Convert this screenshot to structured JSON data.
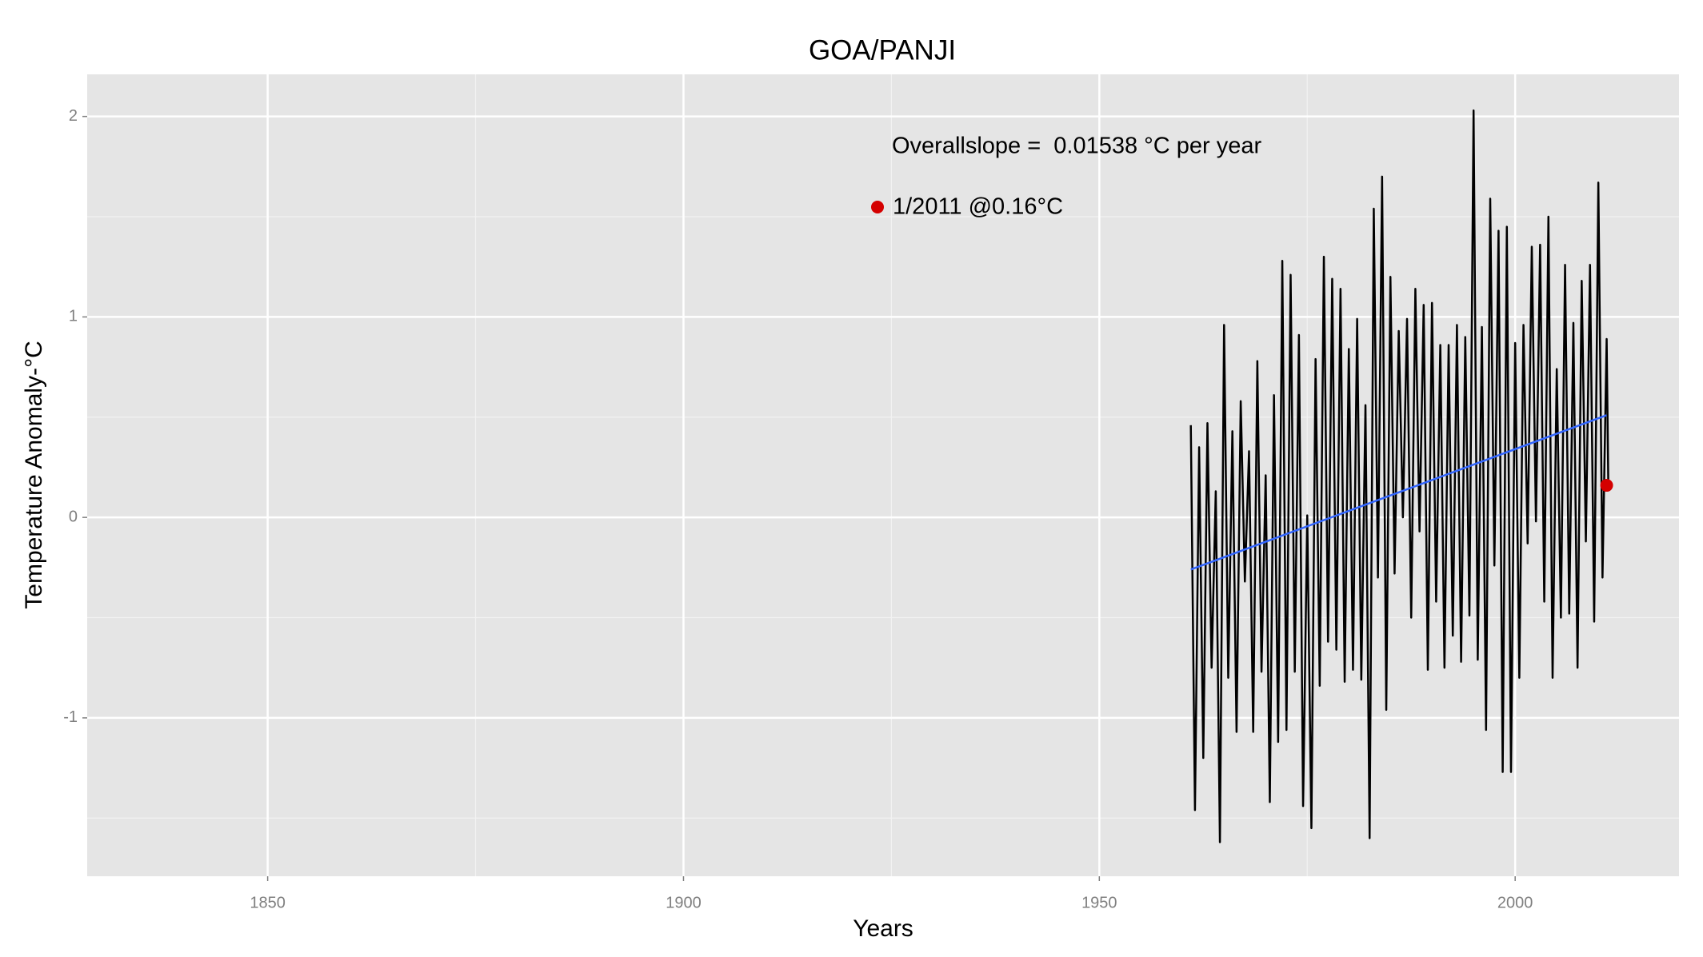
{
  "chart_data": {
    "type": "line",
    "title": "GOA/PANJI",
    "x_label": "Years",
    "y_label": "Temperature Anomaly-°C",
    "xlim": [
      1828.3,
      2019.7
    ],
    "ylim": [
      -1.79,
      2.21
    ],
    "xticks": [
      1850,
      1900,
      1950,
      2000
    ],
    "yticks": [
      -1,
      0,
      1,
      2
    ],
    "grid": true,
    "series": [
      {
        "color": "#000000",
        "x": [
          1961.0,
          1961.5,
          1962.0,
          1962.5,
          1963.0,
          1963.5,
          1964.0,
          1964.5,
          1965.0,
          1965.5,
          1966.0,
          1966.5,
          1967.0,
          1967.5,
          1968.0,
          1968.5,
          1969.0,
          1969.5,
          1970.0,
          1970.5,
          1971.0,
          1971.5,
          1972.0,
          1972.5,
          1973.0,
          1973.5,
          1974.0,
          1974.5,
          1975.0,
          1975.5,
          1976.0,
          1976.5,
          1977.0,
          1977.5,
          1978.0,
          1978.5,
          1979.0,
          1979.5,
          1980.0,
          1980.5,
          1981.0,
          1981.5,
          1982.0,
          1982.5,
          1983.0,
          1983.5,
          1984.0,
          1984.5,
          1985.0,
          1985.5,
          1986.0,
          1986.5,
          1987.0,
          1987.5,
          1988.0,
          1988.5,
          1989.0,
          1989.5,
          1990.0,
          1990.5,
          1991.0,
          1991.5,
          1992.0,
          1992.5,
          1993.0,
          1993.5,
          1994.0,
          1994.5,
          1995.0,
          1995.5,
          1996.0,
          1996.5,
          1997.0,
          1997.5,
          1998.0,
          1998.5,
          1999.0,
          1999.5,
          2000.0,
          2000.5,
          2001.0,
          2001.5,
          2002.0,
          2002.5,
          2003.0,
          2003.5,
          2004.0,
          2004.5,
          2005.0,
          2005.5,
          2006.0,
          2006.5,
          2007.0,
          2007.5,
          2008.0,
          2008.5,
          2009.0,
          2009.5,
          2010.0,
          2010.5,
          2011.0,
          2011.2
        ],
        "values": [
          0.46,
          -1.46,
          0.35,
          -1.2,
          0.47,
          -0.75,
          0.13,
          -1.62,
          0.96,
          -0.8,
          0.43,
          -1.07,
          0.58,
          -0.32,
          0.33,
          -1.07,
          0.78,
          -0.77,
          0.21,
          -1.42,
          0.61,
          -1.12,
          1.28,
          -1.06,
          1.21,
          -0.77,
          0.91,
          -1.44,
          0.01,
          -1.55,
          0.79,
          -0.84,
          1.3,
          -0.62,
          1.19,
          -0.66,
          1.14,
          -0.82,
          0.84,
          -0.76,
          0.99,
          -0.81,
          0.56,
          -1.6,
          1.54,
          -0.3,
          1.7,
          -0.96,
          1.2,
          -0.28,
          0.93,
          0.0,
          0.99,
          -0.5,
          1.14,
          -0.07,
          1.06,
          -0.76,
          1.07,
          -0.42,
          0.86,
          -0.75,
          0.86,
          -0.59,
          0.96,
          -0.72,
          0.9,
          -0.49,
          2.03,
          -0.71,
          0.95,
          -1.06,
          1.59,
          -0.24,
          1.43,
          -1.27,
          1.45,
          -1.27,
          0.87,
          -0.8,
          0.96,
          -0.13,
          1.35,
          -0.02,
          1.36,
          -0.42,
          1.5,
          -0.8,
          0.74,
          -0.5,
          1.26,
          -0.48,
          0.97,
          -0.75,
          1.18,
          -0.12,
          1.26,
          -0.52,
          1.67,
          -0.3,
          0.89,
          0.16
        ]
      }
    ],
    "trend": {
      "x": [
        1961,
        2011
      ],
      "values": [
        -0.26,
        0.51
      ],
      "color": "#3366ff"
    },
    "slope_annotation": "Overallslope =  0.01538 °C per year",
    "highlight": {
      "x": 2011,
      "value": 0.16,
      "label": "1/2011 @0.16°C",
      "color": "#d40000"
    }
  }
}
